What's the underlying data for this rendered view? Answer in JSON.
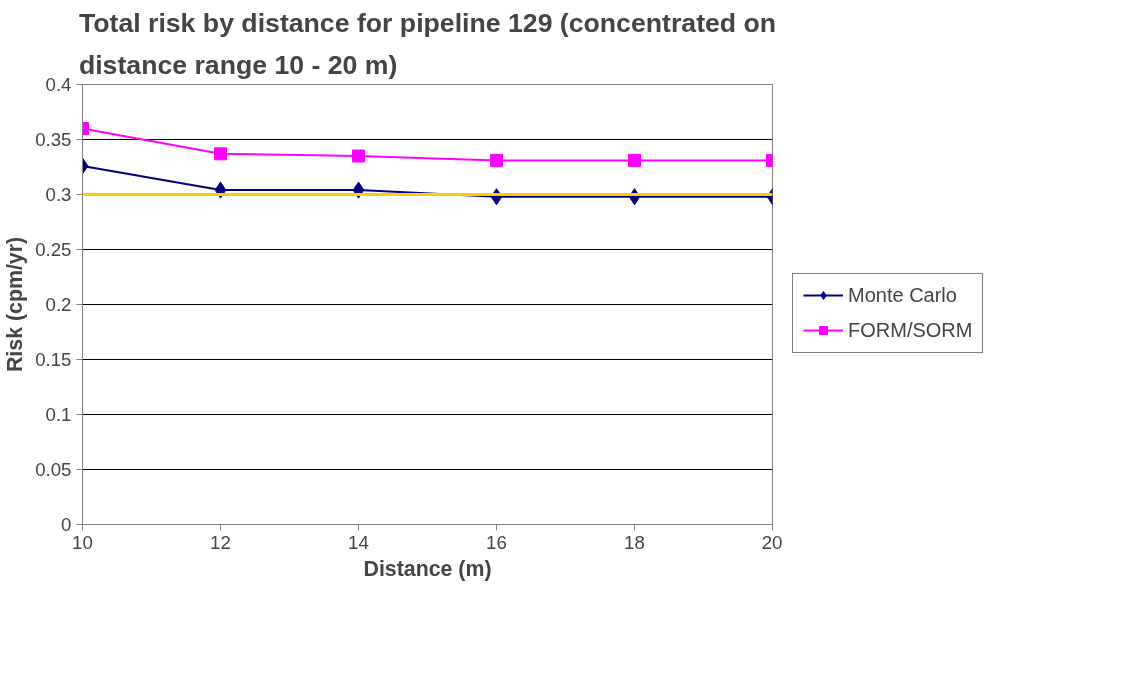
{
  "chart_data": {
    "type": "line",
    "title": "Total risk by distance for pipeline 129 (concentrated on\ndistance range 10 - 20 m)",
    "xlabel": "Distance (m)",
    "ylabel": "Risk (cpm/yr)",
    "x": [
      10,
      12,
      14,
      16,
      18,
      20
    ],
    "xlim": [
      10,
      20
    ],
    "xticks": [
      10,
      12,
      14,
      16,
      18,
      20
    ],
    "ylim": [
      0,
      0.4
    ],
    "yticks": [
      0,
      0.05,
      0.1,
      0.15,
      0.2,
      0.25,
      0.3,
      0.35,
      0.4
    ],
    "grid": "y",
    "legend": "right",
    "series": [
      {
        "name": "Monte Carlo",
        "color": "#000080",
        "marker": "diamond",
        "values": [
          0.326,
          0.304,
          0.304,
          0.298,
          0.298,
          0.298
        ]
      },
      {
        "name": "FORM/SORM",
        "color": "#ff00ff",
        "marker": "square",
        "values": [
          0.36,
          0.337,
          0.335,
          0.331,
          0.331,
          0.331
        ]
      }
    ],
    "ref_lines": [
      {
        "axis": "y",
        "value": 0.3,
        "color": "#ffcc00"
      }
    ]
  }
}
